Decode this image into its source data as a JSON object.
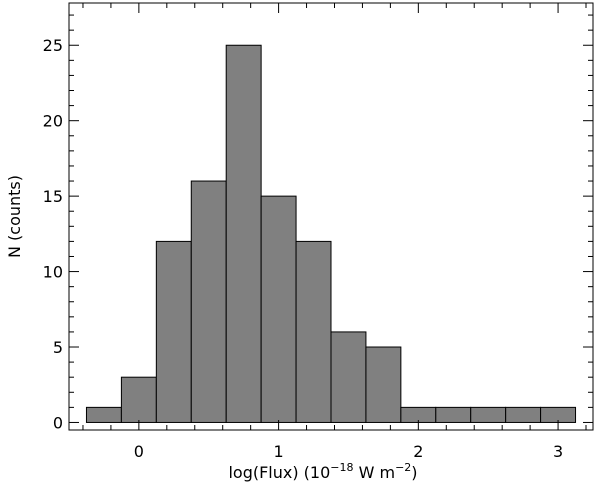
{
  "chart_data": {
    "type": "bar",
    "title": "",
    "xlabel": {
      "prefix": "log(Flux)  (10",
      "exp1": "−18",
      "mid": " W m",
      "exp2": "−2",
      "suffix": ")"
    },
    "ylabel": "N  (counts)",
    "bin_width": 0.25,
    "bins": [
      {
        "left": -0.375,
        "count": 1
      },
      {
        "left": -0.125,
        "count": 3
      },
      {
        "left": 0.125,
        "count": 12
      },
      {
        "left": 0.375,
        "count": 16
      },
      {
        "left": 0.625,
        "count": 25
      },
      {
        "left": 0.875,
        "count": 15
      },
      {
        "left": 1.125,
        "count": 12
      },
      {
        "left": 1.375,
        "count": 6
      },
      {
        "left": 1.625,
        "count": 5
      },
      {
        "left": 1.875,
        "count": 1
      },
      {
        "left": 2.125,
        "count": 1
      },
      {
        "left": 2.375,
        "count": 1
      },
      {
        "left": 2.625,
        "count": 1
      },
      {
        "left": 2.875,
        "count": 1
      }
    ],
    "xlim": [
      -0.5,
      3.25
    ],
    "ylim": [
      -0.5,
      27.8
    ],
    "x_ticks": [
      0,
      1,
      2,
      3
    ],
    "x_tick_labels": [
      "0",
      "1",
      "2",
      "3"
    ],
    "y_ticks": [
      0,
      5,
      10,
      15,
      20,
      25
    ],
    "y_tick_labels": [
      "0",
      "5",
      "10",
      "15",
      "20",
      "25"
    ],
    "bar_color": "#808080",
    "grid": false
  }
}
